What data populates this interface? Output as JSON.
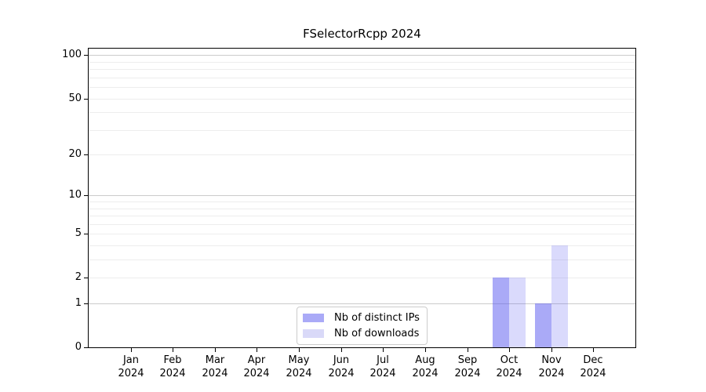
{
  "chart_data": {
    "type": "bar",
    "title": "FSelectorRcpp 2024",
    "categories": [
      "Jan 2024",
      "Feb 2024",
      "Mar 2024",
      "Apr 2024",
      "May 2024",
      "Jun 2024",
      "Jul 2024",
      "Aug 2024",
      "Sep 2024",
      "Oct 2024",
      "Nov 2024",
      "Dec 2024"
    ],
    "series": [
      {
        "name": "Nb of distinct IPs",
        "values": [
          0,
          0,
          0,
          0,
          0,
          0,
          0,
          0,
          0,
          2,
          1,
          0
        ],
        "fill_rgba": "rgba(86,86,240,0.5)",
        "rendered_color": "#aaaaf7"
      },
      {
        "name": "Nb of downloads",
        "values": [
          0,
          0,
          0,
          0,
          0,
          0,
          0,
          0,
          0,
          2,
          4,
          0
        ],
        "fill_rgba": "rgba(86,86,240,0.22)",
        "rendered_color": "#d9d9f8"
      }
    ],
    "xlabel": "",
    "ylabel": "",
    "yscale": "log1p",
    "ylim": [
      0,
      111
    ],
    "yticks": [
      0,
      1,
      2,
      5,
      10,
      20,
      50,
      100
    ],
    "major_gridlines": [
      1,
      10,
      100
    ],
    "minor_gridlines": [
      2,
      3,
      4,
      5,
      6,
      7,
      8,
      9,
      20,
      30,
      40,
      50,
      60,
      70,
      80,
      90
    ],
    "grid": "on",
    "legend_position": "lower center",
    "colors": {
      "major_grid": "#cbcbcb",
      "minor_grid": "#ededed",
      "spine": "#000000",
      "background": "#ffffff"
    }
  }
}
